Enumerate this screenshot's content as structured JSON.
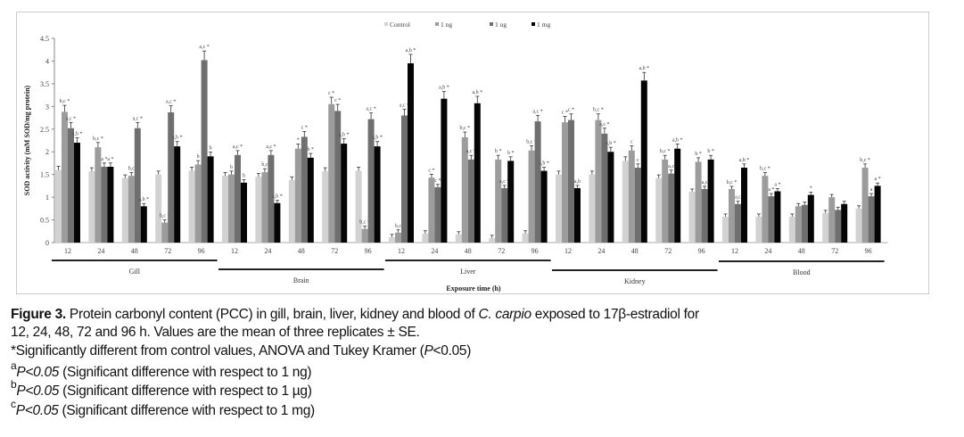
{
  "chart_data": {
    "type": "bar",
    "ylabel": "SOD activity (mM SOD/mg protein)",
    "xlabel": "Exposure time (h)",
    "ylim": [
      0,
      4.5
    ],
    "yticks": [
      "0",
      "0.5",
      "1",
      "1.5",
      "2",
      "2.5",
      "3",
      "3.5",
      "4",
      "4.5"
    ],
    "legend": {
      "placement": "top-center",
      "entries": [
        "Control",
        "1 ng",
        "1 ug",
        "1 mg"
      ]
    },
    "colors": [
      "#d2d2d2",
      "#9c9c9c",
      "#6f6f6f",
      "#050505"
    ],
    "organs": [
      {
        "name": "Gill",
        "groups": [
          {
            "time": "12",
            "values": [
              1.6,
              2.88,
              2.52,
              2.2
            ],
            "labels": [
              "",
              "b,c *",
              "a,c *",
              "a,b *"
            ]
          },
          {
            "time": "24",
            "values": [
              1.57,
              2.1,
              1.67,
              1.67
            ],
            "labels": [
              "",
              "b,c *",
              "a *",
              "a *"
            ]
          },
          {
            "time": "48",
            "values": [
              1.42,
              1.47,
              2.52,
              0.8
            ],
            "labels": [
              "",
              "b,c",
              "a,c *",
              "a,b *"
            ]
          },
          {
            "time": "72",
            "values": [
              1.5,
              0.44,
              2.87,
              2.12
            ],
            "labels": [
              "",
              "b,c *",
              "a,c *",
              "a,b *"
            ]
          },
          {
            "time": "96",
            "values": [
              1.58,
              1.72,
              4.02,
              1.9
            ],
            "labels": [
              "",
              "b",
              "a,c *",
              "b"
            ]
          }
        ]
      },
      {
        "name": "Brain",
        "groups": [
          {
            "time": "12",
            "values": [
              1.47,
              1.5,
              1.93,
              1.32
            ],
            "labels": [
              "",
              "b",
              "a,c *",
              "b"
            ]
          },
          {
            "time": "24",
            "values": [
              1.45,
              1.55,
              1.93,
              0.87
            ],
            "labels": [
              "",
              "b,c",
              "a,c *",
              "a,b *"
            ]
          },
          {
            "time": "48",
            "values": [
              1.38,
              2.07,
              2.33,
              1.87
            ],
            "labels": [
              "",
              "*",
              "c *",
              "b *"
            ]
          },
          {
            "time": "72",
            "values": [
              1.57,
              3.05,
              2.9,
              2.18
            ],
            "labels": [
              "",
              "c *",
              "c *",
              "a,b *"
            ]
          },
          {
            "time": "96",
            "values": [
              1.58,
              0.3,
              2.72,
              2.12
            ],
            "labels": [
              "",
              "b,c *",
              "a,c *",
              "a,b *"
            ]
          }
        ]
      },
      {
        "name": "Liver",
        "groups": [
          {
            "time": "12",
            "values": [
              0.12,
              0.22,
              2.8,
              3.95
            ],
            "labels": [
              "",
              "b,c",
              "a,c *",
              "a,b *"
            ]
          },
          {
            "time": "24",
            "values": [
              0.2,
              1.43,
              1.22,
              3.17
            ],
            "labels": [
              "",
              "c *",
              "c *",
              "a,b *"
            ]
          },
          {
            "time": "48",
            "values": [
              0.18,
              2.32,
              1.83,
              3.07
            ],
            "labels": [
              "",
              "b,c *",
              "a,c *",
              "a,b *"
            ]
          },
          {
            "time": "72",
            "values": [
              0.1,
              1.83,
              1.2,
              1.8
            ],
            "labels": [
              "",
              "b *",
              "a,c *",
              "b *"
            ]
          },
          {
            "time": "96",
            "values": [
              0.2,
              2.03,
              2.67,
              1.58
            ],
            "labels": [
              "",
              "b,c *",
              "a,c *",
              "a,b *"
            ]
          }
        ]
      },
      {
        "name": "Kidney",
        "groups": [
          {
            "time": "12",
            "values": [
              1.5,
              2.65,
              2.7,
              1.2
            ],
            "labels": [
              "",
              "c *",
              "c *",
              "a,b"
            ]
          },
          {
            "time": "24",
            "values": [
              1.5,
              2.7,
              2.4,
              2.0
            ],
            "labels": [
              "",
              "b,c *",
              "a,c *",
              "a,b *"
            ]
          },
          {
            "time": "48",
            "values": [
              1.8,
              2.03,
              1.65,
              3.57
            ],
            "labels": [
              "",
              "c",
              "c",
              "a,b *"
            ]
          },
          {
            "time": "72",
            "values": [
              1.42,
              1.83,
              1.52,
              2.07
            ],
            "labels": [
              "",
              "b,c *",
              "a,c",
              "a,b *"
            ]
          },
          {
            "time": "96",
            "values": [
              1.12,
              1.78,
              1.18,
              1.83
            ],
            "labels": [
              "",
              "b *",
              "a,c",
              "b *"
            ]
          }
        ]
      },
      {
        "name": "Blood",
        "groups": [
          {
            "time": "12",
            "values": [
              0.57,
              1.18,
              0.85,
              1.65
            ],
            "labels": [
              "",
              "b,c *",
              "a,c",
              "a,b *"
            ]
          },
          {
            "time": "24",
            "values": [
              0.57,
              1.47,
              1.02,
              1.13
            ],
            "labels": [
              "",
              "b,c *",
              "a *",
              "a *"
            ]
          },
          {
            "time": "48",
            "values": [
              0.57,
              0.8,
              0.83,
              1.05
            ],
            "labels": [
              "",
              "",
              "",
              "*"
            ]
          },
          {
            "time": "72",
            "values": [
              0.65,
              1.0,
              0.72,
              0.85
            ],
            "labels": [
              "",
              "",
              "",
              ""
            ]
          },
          {
            "time": "96",
            "values": [
              0.75,
              1.65,
              1.02,
              1.25
            ],
            "labels": [
              "",
              "b,c *",
              "a",
              "a *"
            ]
          }
        ]
      }
    ]
  },
  "caption": {
    "figure_label": "Figure 3.",
    "line1": " Protein carbonyl content (PCC) in gill, brain, liver, kidney and blood of ",
    "species": "C. carpio",
    "line1_end": " exposed to 17β-estradiol for",
    "line2": "12, 24, 48, 72 and 96 h. Values are the mean of three replicates ± SE.",
    "line3_pre": "*Significantly different from control values, ANOVA and Tukey Kramer (",
    "line3_p": "P",
    "line3_post": "<0.05)",
    "notes": [
      {
        "mark": "a",
        "p": "P<0.05",
        "text": " (Significant difference with respect to 1 ng)"
      },
      {
        "mark": "b",
        "p": "P<0.05",
        "text": " (Significant difference with respect to 1 µg)"
      },
      {
        "mark": "c",
        "p": "P<0.05",
        "text": " (Significant difference with respect to 1 mg)"
      }
    ]
  }
}
